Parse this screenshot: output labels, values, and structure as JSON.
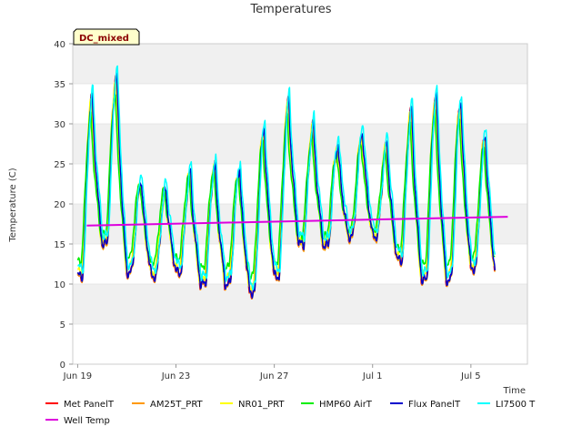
{
  "chart_data": {
    "type": "line",
    "title": "Temperatures",
    "xlabel": "Time",
    "ylabel": "Temperature (C)",
    "ylim": [
      0,
      40
    ],
    "xlim": [
      -0.2,
      18.3
    ],
    "yticks": [
      0,
      5,
      10,
      15,
      20,
      25,
      30,
      35,
      40
    ],
    "xticks": [
      {
        "value": 0,
        "label": "Jun 19"
      },
      {
        "value": 4,
        "label": "Jun 23"
      },
      {
        "value": 8,
        "label": "Jun 27"
      },
      {
        "value": 12,
        "label": "Jul 1"
      },
      {
        "value": 16,
        "label": "Jul 5"
      }
    ],
    "grid": "horizontal bands",
    "badge": "DC_mixed",
    "days": [
      {
        "min": 11.0,
        "max": 33.5
      },
      {
        "min": 15.0,
        "max": 36.5
      },
      {
        "min": 11.5,
        "max": 23.0
      },
      {
        "min": 11.0,
        "max": 22.0
      },
      {
        "min": 11.5,
        "max": 24.0
      },
      {
        "min": 10.0,
        "max": 25.0
      },
      {
        "min": 10.0,
        "max": 24.5
      },
      {
        "min": 9.0,
        "max": 29.5
      },
      {
        "min": 11.0,
        "max": 33.0
      },
      {
        "min": 15.0,
        "max": 30.0
      },
      {
        "min": 14.8,
        "max": 27.5
      },
      {
        "min": 16.0,
        "max": 29.0
      },
      {
        "min": 16.0,
        "max": 27.5
      },
      {
        "min": 13.0,
        "max": 32.0
      },
      {
        "min": 10.5,
        "max": 34.0
      },
      {
        "min": 10.5,
        "max": 33.0
      },
      {
        "min": 12.0,
        "max": 28.5
      }
    ],
    "day_end": {
      "min": 11.0
    },
    "series": [
      {
        "name": "Met PanelT",
        "color": "#ff0000",
        "scale": 1.0,
        "offset": -0.1,
        "phase": 0.02
      },
      {
        "name": "AM25T_PRT",
        "color": "#ff9900",
        "scale": 0.98,
        "offset": -0.3,
        "phase": 0.0
      },
      {
        "name": "NR01_PRT",
        "color": "#ffff00",
        "scale": 0.94,
        "offset": 0.2,
        "phase": 0.05
      },
      {
        "name": "HMP60 AirT",
        "color": "#00ee00",
        "scale": 0.82,
        "offset": 0.6,
        "phase": 0.06
      },
      {
        "name": "Flux PanelT",
        "color": "#0000cc",
        "scale": 1.0,
        "offset": 0.0,
        "phase": 0.0
      },
      {
        "name": "LI7500 T",
        "color": "#00ffff",
        "scale": 1.0,
        "offset": 1.0,
        "phase": -0.03
      }
    ],
    "well_temp": {
      "name": "Well Temp",
      "color": "#dd00dd",
      "x": [
        0,
        17.5
      ],
      "values": [
        17.3,
        18.4
      ]
    }
  }
}
